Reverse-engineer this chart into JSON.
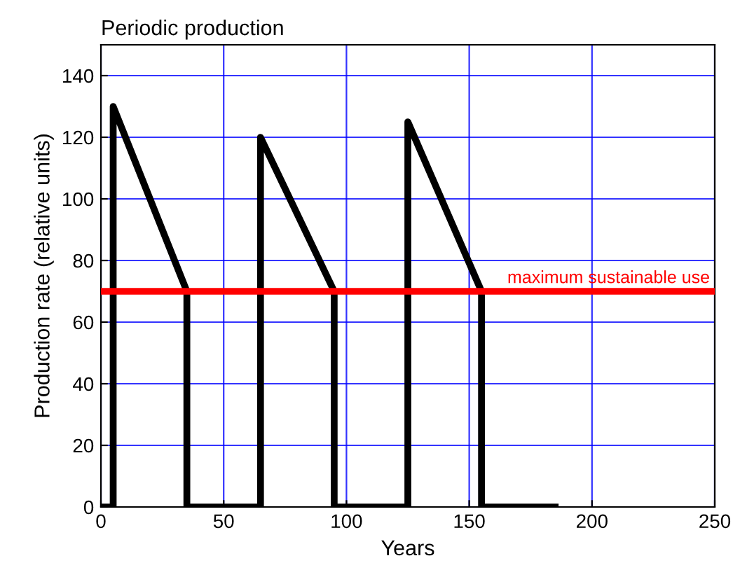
{
  "chart_data": {
    "type": "line",
    "title": "Periodic production",
    "xlabel": "Years",
    "ylabel": "Production rate (relative units)",
    "series": [
      {
        "color": "#000000",
        "x": [
          0,
          5,
          5,
          35,
          35,
          65,
          65,
          95,
          95,
          125,
          125,
          155,
          155,
          185
        ],
        "values": [
          0,
          0,
          130,
          70,
          0,
          0,
          120,
          70,
          0,
          0,
          125,
          70,
          0,
          0
        ]
      }
    ],
    "xlim": [
      0,
      250
    ],
    "xticks": [
      0,
      50,
      100,
      150,
      200,
      250
    ],
    "ylim": [
      0,
      150
    ],
    "yticks": [
      0,
      20,
      40,
      60,
      80,
      100,
      120,
      140
    ],
    "ref_lines": [
      {
        "axis": "y",
        "value": 70,
        "label": "maximum sustainable use",
        "color": "#ff0000",
        "line_style": "solid"
      }
    ],
    "grid": true,
    "marker": "none",
    "line_style": "solid"
  }
}
